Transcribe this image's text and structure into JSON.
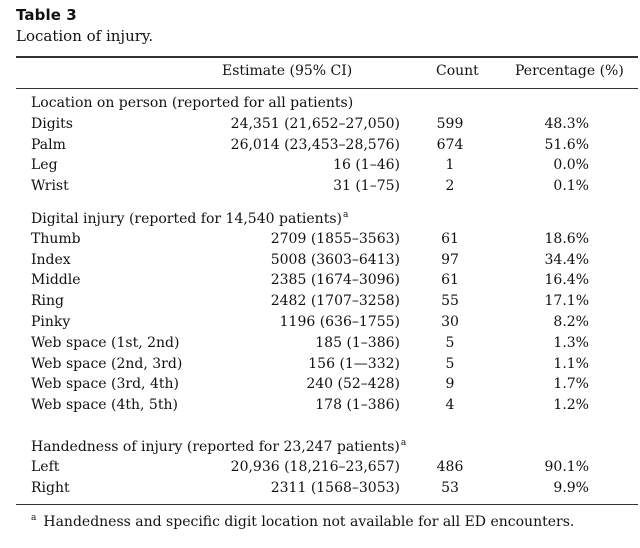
{
  "title": "Table 3",
  "caption": "Location of injury.",
  "columns": {
    "estimate": "Estimate (95% CI)",
    "count": "Count",
    "percentage": "Percentage (%)"
  },
  "sections": [
    {
      "heading": "Location on person (reported for all patients)",
      "note_mark": "",
      "rows": [
        {
          "label": "Digits",
          "estimate": "24,351 (21,652–27,050)",
          "count": "599",
          "percentage": "48.3%"
        },
        {
          "label": "Palm",
          "estimate": "26,014 (23,453–28,576)",
          "count": "674",
          "percentage": "51.6%"
        },
        {
          "label": "Leg",
          "estimate": "16 (1–46)",
          "count": "1",
          "percentage": "0.0%"
        },
        {
          "label": "Wrist",
          "estimate": "31 (1–75)",
          "count": "2",
          "percentage": "0.1%"
        }
      ]
    },
    {
      "heading": "Digital injury (reported for 14,540 patients)",
      "note_mark": "a",
      "rows": [
        {
          "label": "Thumb",
          "estimate": "2709 (1855–3563)",
          "count": "61",
          "percentage": "18.6%"
        },
        {
          "label": "Index",
          "estimate": "5008 (3603–6413)",
          "count": "97",
          "percentage": "34.4%"
        },
        {
          "label": "Middle",
          "estimate": "2385 (1674–3096)",
          "count": "61",
          "percentage": "16.4%"
        },
        {
          "label": "Ring",
          "estimate": "2482 (1707–3258)",
          "count": "55",
          "percentage": "17.1%"
        },
        {
          "label": "Pinky",
          "estimate": "1196 (636–1755)",
          "count": "30",
          "percentage": "8.2%"
        },
        {
          "label": "Web space (1st, 2nd)",
          "estimate": "185 (1–386)",
          "count": "5",
          "percentage": "1.3%"
        },
        {
          "label": "Web space (2nd, 3rd)",
          "estimate": "156 (1—332)",
          "count": "5",
          "percentage": "1.1%"
        },
        {
          "label": "Web space (3rd, 4th)",
          "estimate": "240 (52–428)",
          "count": "9",
          "percentage": "1.7%"
        },
        {
          "label": "Web space (4th, 5th)",
          "estimate": "178 (1–386)",
          "count": "4",
          "percentage": "1.2%"
        }
      ]
    },
    {
      "heading": "Handedness of injury (reported for 23,247 patients)",
      "note_mark": "a",
      "rows": [
        {
          "label": "Left",
          "estimate": "20,936 (18,216–23,657)",
          "count": "486",
          "percentage": "90.1%"
        },
        {
          "label": "Right",
          "estimate": "2311 (1568–3053)",
          "count": "53",
          "percentage": "9.9%"
        }
      ]
    }
  ],
  "footnote": {
    "mark": "a",
    "text": "Handedness and specific digit location not available for all ED encounters."
  }
}
